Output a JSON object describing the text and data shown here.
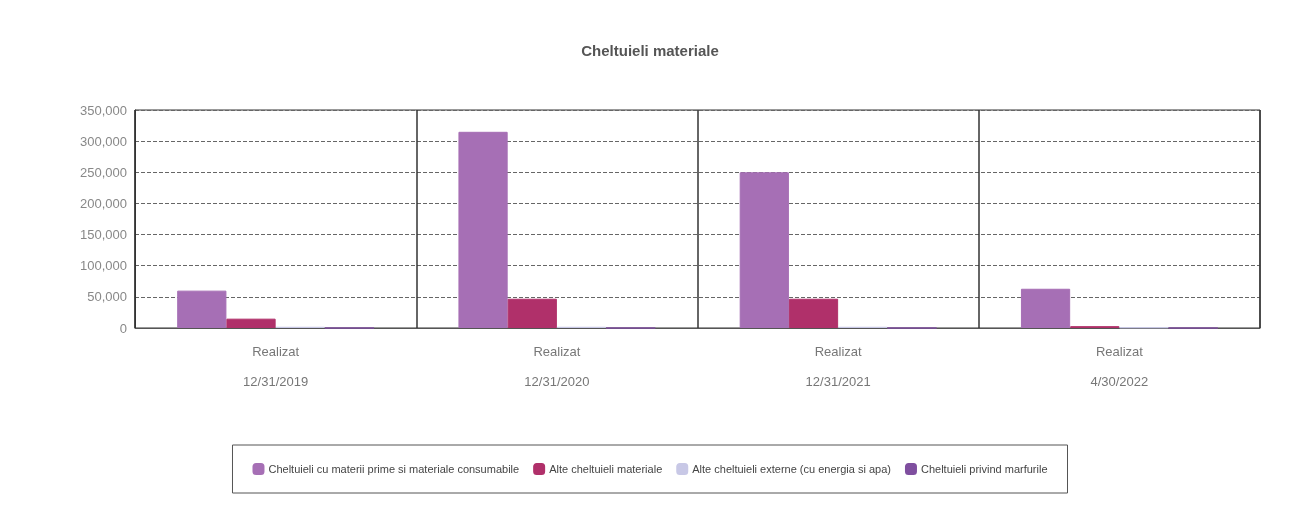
{
  "chart_data": {
    "type": "bar",
    "title": "Cheltuieli materiale",
    "categories": [
      "Realizat\n12/31/2019",
      "Realizat\n12/31/2020",
      "Realizat\n12/31/2021",
      "Realizat\n4/30/2022"
    ],
    "series": [
      {
        "name": "Cheltuieli cu materii prime si materiale consumabile",
        "color": "#a66fb5",
        "values": [
          60000,
          315000,
          250000,
          63000
        ]
      },
      {
        "name": "Alte cheltuieli materiale",
        "color": "#b0306a",
        "values": [
          15000,
          47000,
          47000,
          3000
        ]
      },
      {
        "name": "Alte cheltuieli externe (cu energia si apa)",
        "color": "#c8c8e6",
        "values": [
          2000,
          2000,
          2000,
          1000
        ]
      },
      {
        "name": "Cheltuieli privind marfurile",
        "color": "#7f4f9f",
        "values": [
          0,
          0,
          0,
          0
        ]
      }
    ],
    "ylim": [
      0,
      350000
    ],
    "yticks": [
      {
        "value": 0,
        "label": "0"
      },
      {
        "value": 50000,
        "label": "50,000"
      },
      {
        "value": 100000,
        "label": "100,000"
      },
      {
        "value": 150000,
        "label": "150,000"
      },
      {
        "value": 200000,
        "label": "200,000"
      },
      {
        "value": 250000,
        "label": "250,000"
      },
      {
        "value": 300000,
        "label": "300,000"
      },
      {
        "value": 350000,
        "label": "350,000"
      }
    ],
    "grid": true,
    "legend": "bottom"
  }
}
